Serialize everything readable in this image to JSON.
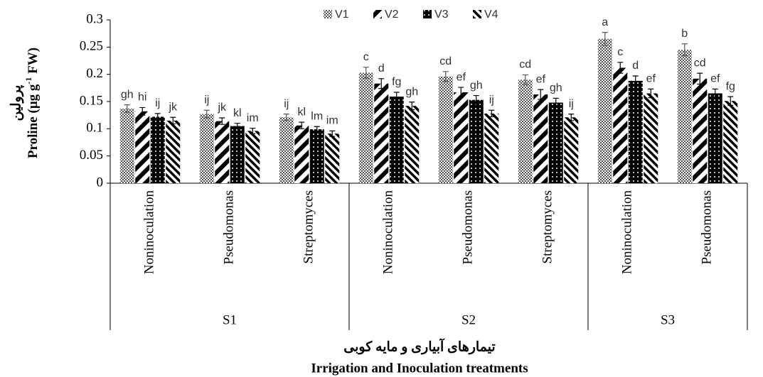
{
  "chart_data": {
    "type": "bar",
    "y_label_fa": "پرولین",
    "y_label_parts": [
      "Proline (µg g",
      "-1",
      " FW)"
    ],
    "x_label_fa": "تیمارهای آبیاری و مایه کوبی",
    "x_label": "Irrigation and Inoculation treatments",
    "groups": [
      {
        "name": "S1",
        "categories": [
          "Noninoculation",
          "Pseudomonas",
          "Streptomyces"
        ]
      },
      {
        "name": "S2",
        "categories": [
          "Noninoculation",
          "Pseudomonas",
          "Streptomyces"
        ]
      },
      {
        "name": "S3",
        "categories": [
          "Noninoculation",
          "Pseudomonas"
        ]
      }
    ],
    "series": [
      {
        "name": "V1",
        "color": "#555555",
        "pattern": "checker",
        "values": [
          0.137,
          0.127,
          0.121,
          0.203,
          0.196,
          0.19,
          0.265,
          0.245
        ],
        "errors": [
          0.007,
          0.007,
          0.006,
          0.01,
          0.009,
          0.009,
          0.012,
          0.011
        ],
        "letters": [
          "gh",
          "ij",
          "ij",
          "c",
          "cd",
          "cd",
          "a",
          "b"
        ]
      },
      {
        "name": "V2",
        "color": "#000000",
        "pattern": "back-stripes",
        "values": [
          0.132,
          0.114,
          0.106,
          0.183,
          0.167,
          0.163,
          0.212,
          0.192
        ],
        "errors": [
          0.007,
          0.006,
          0.006,
          0.009,
          0.009,
          0.009,
          0.01,
          0.01
        ],
        "letters": [
          "hi",
          "jk",
          "kl",
          "d",
          "ef",
          "ef",
          "c",
          "cd"
        ]
      },
      {
        "name": "V3",
        "color": "#000000",
        "pattern": "dots",
        "values": [
          0.122,
          0.105,
          0.099,
          0.159,
          0.153,
          0.148,
          0.188,
          0.165
        ],
        "errors": [
          0.006,
          0.005,
          0.005,
          0.008,
          0.008,
          0.008,
          0.009,
          0.008
        ],
        "letters": [
          "ij",
          "kl",
          "lm",
          "fg",
          "gh",
          "gh",
          "d",
          "ef"
        ]
      },
      {
        "name": "V4",
        "color": "#000000",
        "pattern": "fwd-stripes",
        "values": [
          0.115,
          0.096,
          0.091,
          0.142,
          0.128,
          0.121,
          0.165,
          0.151
        ],
        "errors": [
          0.006,
          0.005,
          0.005,
          0.007,
          0.006,
          0.006,
          0.008,
          0.008
        ],
        "letters": [
          "jk",
          "im",
          "im",
          "gh",
          "ij",
          "ij",
          "ef",
          "fg"
        ]
      }
    ],
    "ylim": [
      0,
      0.3
    ],
    "yticks": [
      0,
      {
        "value": 0.05,
        "label": "0.05"
      },
      {
        "value": 0.1,
        "label": "0.1"
      },
      {
        "value": 0.15,
        "label": "0.15"
      },
      {
        "value": 0.2,
        "label": "0.2"
      },
      {
        "value": 0.25,
        "label": "0.25"
      },
      {
        "value": 0.3,
        "label": "0.3"
      }
    ],
    "legend": "top"
  }
}
